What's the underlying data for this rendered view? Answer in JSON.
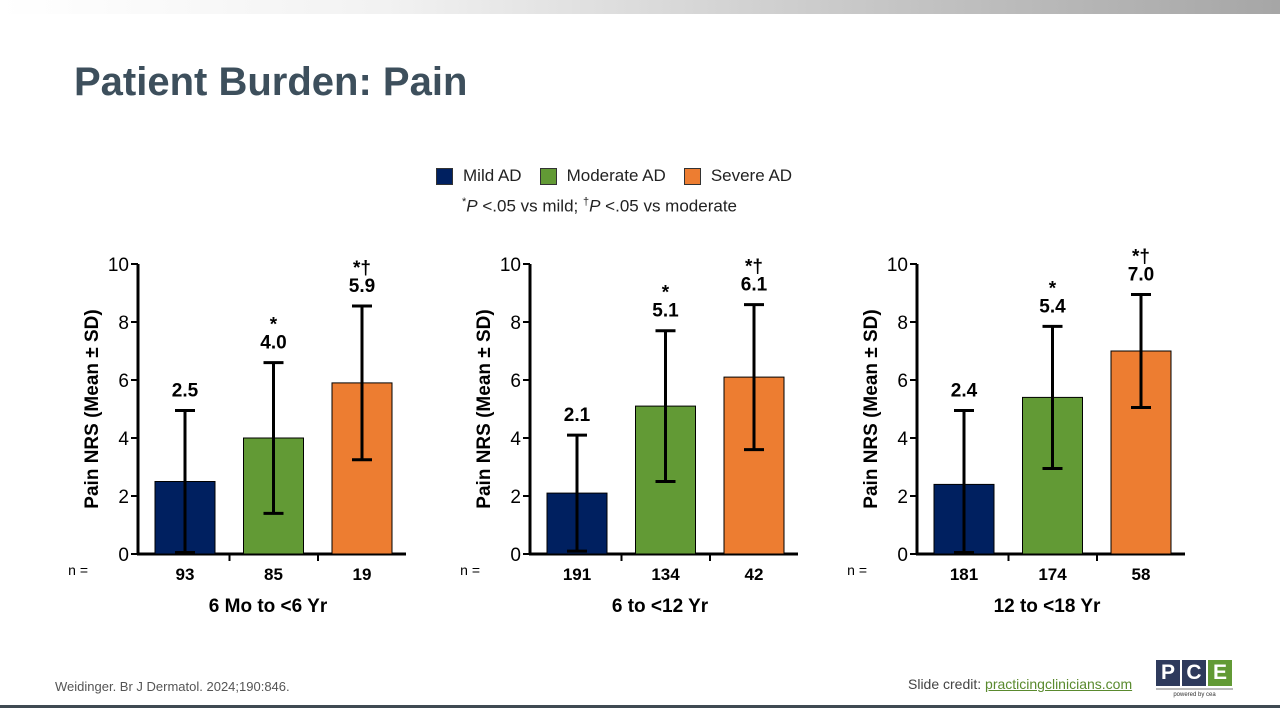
{
  "title": "Patient Burden: Pain",
  "legend": [
    {
      "label": "Mild AD",
      "color": "#002060"
    },
    {
      "label": "Moderate AD",
      "color": "#629a35"
    },
    {
      "label": "Severe AD",
      "color": "#ed7d31"
    }
  ],
  "note": {
    "a_sym": "*",
    "a_p": "P",
    "a_text": " <.05 vs mild; ",
    "b_sym": "†",
    "b_p": "P",
    "b_text": " <.05 vs moderate"
  },
  "chart_data": [
    {
      "type": "bar",
      "title": "6 Mo to <6 Yr",
      "ylabel": "Pain NRS (Mean ± SD)",
      "ylim": [
        0,
        10
      ],
      "yticks": [
        "0",
        "2",
        "4",
        "6",
        "8",
        "10"
      ],
      "n_label": "n =",
      "categories": [
        "Mild AD",
        "Moderate AD",
        "Severe AD"
      ],
      "values": [
        2.5,
        4.0,
        5.9
      ],
      "labels": [
        "2.5",
        "4.0",
        "5.9"
      ],
      "sd": [
        2.45,
        2.6,
        2.65
      ],
      "n": [
        "93",
        "85",
        "19"
      ],
      "sig": [
        "",
        "*",
        "*†"
      ]
    },
    {
      "type": "bar",
      "title": "6 to <12 Yr",
      "ylabel": "Pain NRS (Mean ± SD)",
      "ylim": [
        0,
        10
      ],
      "yticks": [
        "0",
        "2",
        "4",
        "6",
        "8",
        "10"
      ],
      "n_label": "n =",
      "categories": [
        "Mild AD",
        "Moderate AD",
        "Severe AD"
      ],
      "values": [
        2.1,
        5.1,
        6.1
      ],
      "labels": [
        "2.1",
        "5.1",
        "6.1"
      ],
      "sd": [
        2.0,
        2.6,
        2.5
      ],
      "n": [
        "191",
        "134",
        "42"
      ],
      "sig": [
        "",
        "*",
        "*†"
      ]
    },
    {
      "type": "bar",
      "title": "12 to <18 Yr",
      "ylabel": "Pain NRS (Mean ± SD)",
      "ylim": [
        0,
        10
      ],
      "yticks": [
        "0",
        "2",
        "4",
        "6",
        "8",
        "10"
      ],
      "n_label": "n =",
      "categories": [
        "Mild AD",
        "Moderate AD",
        "Severe AD"
      ],
      "values": [
        2.4,
        5.4,
        7.0
      ],
      "labels": [
        "2.4",
        "5.4",
        "7.0"
      ],
      "sd": [
        2.55,
        2.45,
        1.95
      ],
      "n": [
        "181",
        "174",
        "58"
      ],
      "sig": [
        "",
        "*",
        "*†"
      ]
    }
  ],
  "footer": {
    "citation": "Weidinger. Br J Dermatol. 2024;190:846.",
    "credit_label": "Slide credit: ",
    "credit_link": "practicingclinicians.com",
    "logo": [
      "P",
      "C",
      "E"
    ],
    "logo_sub": "powered by cea"
  }
}
